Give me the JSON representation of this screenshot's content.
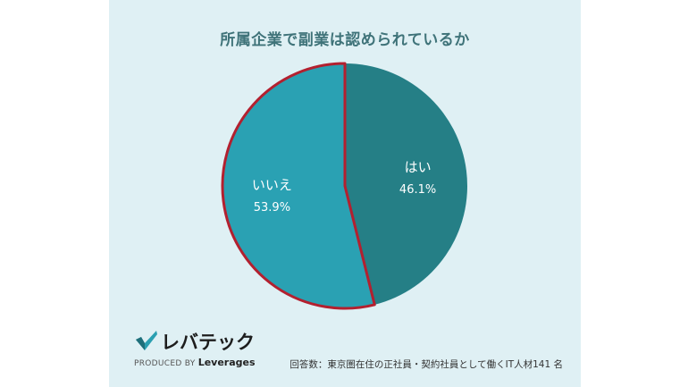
{
  "chart_data": {
    "type": "pie",
    "title": "所属企業で副業は認められているか",
    "slices": [
      {
        "label": "はい",
        "value": 46.1,
        "display": "46.1%",
        "color": "#257f86"
      },
      {
        "label": "いいえ",
        "value": 53.9,
        "display": "53.9%",
        "color": "#2aa1b3"
      }
    ],
    "highlight_color": "#b3202f"
  },
  "logo": {
    "name": "レバテック",
    "produced_by": "PRODUCED BY",
    "company": "Leverages"
  },
  "note": "回答数：東京圏在住の正社員・契約社員として働くIT人材141 名"
}
